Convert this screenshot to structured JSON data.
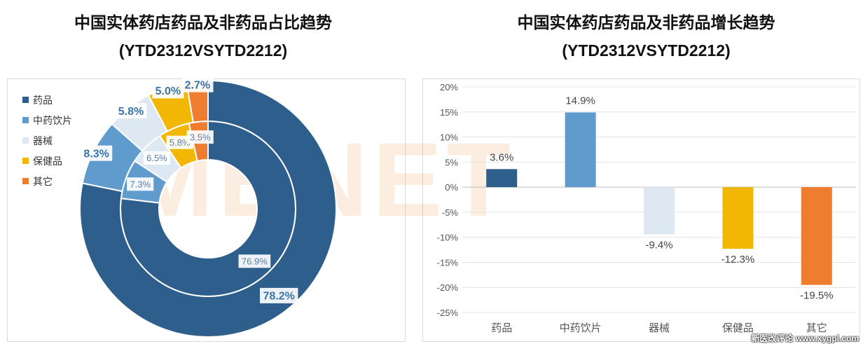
{
  "left_title": {
    "line1": "中国实体药店药品及非药品占比趋势",
    "line2": "(YTD2312VSYTD2212)"
  },
  "right_title": {
    "line1": "中国实体药店药品及非药品增长趋势",
    "line2": "(YTD2312VSYTD2212)"
  },
  "watermark": "MENET",
  "footer_mark": "新医改评论 www.xygpl.com",
  "colors": {
    "药品": "#2e5f8c",
    "中药饮片": "#5f9ccd",
    "器械": "#dde8f3",
    "保健品": "#f2b705",
    "其它": "#ee7d30"
  },
  "chart_data": [
    {
      "type": "pie",
      "subtype": "double-donut",
      "legend": [
        "药品",
        "中药饮片",
        "器械",
        "保健品",
        "其它"
      ],
      "legend_position": "left",
      "series": [
        {
          "name": "",
          "values": [
            76.9,
            7.3,
            6.5,
            5.8,
            3.5
          ],
          "labels": [
            "76.9%",
            "7.3%",
            "6.5%",
            "5.8%",
            "3.5%"
          ]
        },
        {
          "name": "",
          "values": [
            78.2,
            8.3,
            5.8,
            5.0,
            2.7
          ],
          "labels": [
            "78.2%",
            "8.3%",
            "5.8%",
            "5.0%",
            "2.7%"
          ]
        }
      ]
    },
    {
      "type": "bar",
      "categories": [
        "药品",
        "中药饮片",
        "器械",
        "保健品",
        "其它"
      ],
      "values": [
        3.6,
        14.9,
        -9.4,
        -12.3,
        -19.5
      ],
      "labels": [
        "3.6%",
        "14.9%",
        "-9.4%",
        "-12.3%",
        "-19.5%"
      ],
      "yticks": [
        "20%",
        "15%",
        "10%",
        "5%",
        "0%",
        "-5%",
        "-10%",
        "-15%",
        "-20%",
        "-25%"
      ],
      "ylim": [
        -25,
        20
      ],
      "grid": true
    }
  ]
}
